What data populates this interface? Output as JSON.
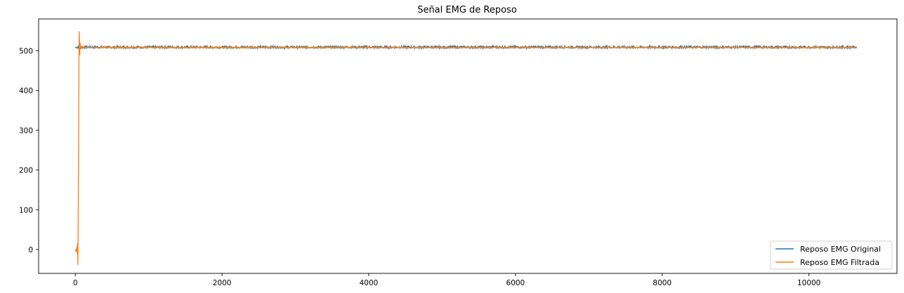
{
  "chart_data": {
    "type": "line",
    "title": "Señal EMG de Reposo",
    "xlabel": "",
    "ylabel": "",
    "xlim": [
      -500,
      11200
    ],
    "ylim": [
      -60,
      580
    ],
    "xticks": [
      0,
      2000,
      4000,
      6000,
      8000,
      10000
    ],
    "yticks": [
      0,
      100,
      200,
      300,
      400,
      500
    ],
    "grid": false,
    "legend_position": "lower-right",
    "series": [
      {
        "name": "Reposo EMG Original",
        "color": "#1f77b4",
        "n_samples": 10650,
        "baseline": 509,
        "noise_amplitude": 3,
        "x": [
          0,
          1000,
          2000,
          3000,
          4000,
          5000,
          6000,
          7000,
          8000,
          9000,
          10000,
          10650
        ],
        "y": [
          509,
          509,
          509,
          509,
          509,
          509,
          509,
          509,
          509,
          509,
          509,
          509
        ]
      },
      {
        "name": "Reposo EMG Filtrada",
        "color": "#ff7f0e",
        "x": [
          0,
          10,
          20,
          25,
          30,
          35,
          40,
          45,
          50,
          55,
          60,
          65,
          70,
          80,
          90,
          100,
          150,
          300,
          1000,
          2000,
          4000,
          6000,
          8000,
          10000,
          10650
        ],
        "y": [
          0,
          -5,
          5,
          -10,
          15,
          -38,
          100,
          300,
          495,
          548,
          490,
          520,
          505,
          512,
          506,
          510,
          508,
          508,
          508,
          508,
          508,
          508,
          508,
          508,
          508
        ]
      }
    ]
  }
}
